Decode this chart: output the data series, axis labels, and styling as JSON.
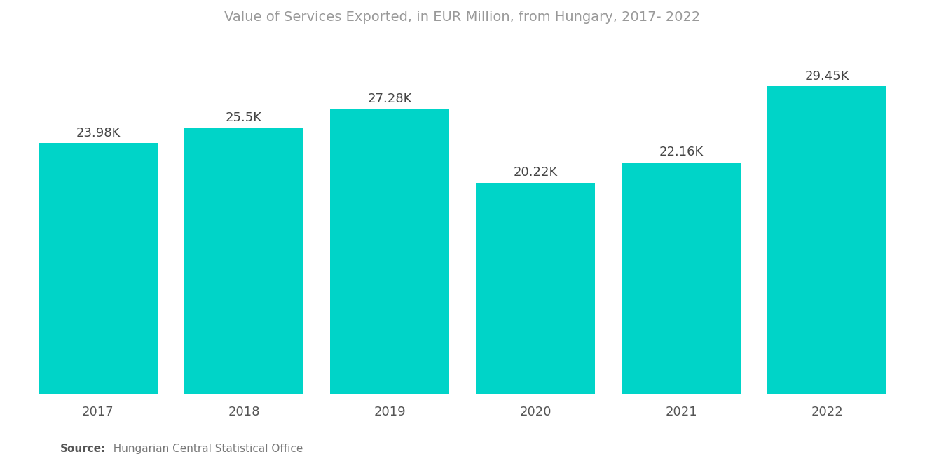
{
  "title": "Value of Services Exported, in EUR Million, from Hungary, 2017- 2022",
  "categories": [
    "2017",
    "2018",
    "2019",
    "2020",
    "2021",
    "2022"
  ],
  "values": [
    23.98,
    25.5,
    27.28,
    20.22,
    22.16,
    29.45
  ],
  "labels": [
    "23.98K",
    "25.5K",
    "27.28K",
    "20.22K",
    "22.16K",
    "29.45K"
  ],
  "bar_color": "#00D4C8",
  "background_color": "#ffffff",
  "title_color": "#999999",
  "label_color": "#444444",
  "tick_color": "#555555",
  "source_bold": "Source:",
  "source_text": "  Hungarian Central Statistical Office",
  "title_fontsize": 14,
  "label_fontsize": 13,
  "tick_fontsize": 13,
  "source_fontsize": 11,
  "ylim": [
    0,
    34
  ],
  "bar_width": 0.82
}
